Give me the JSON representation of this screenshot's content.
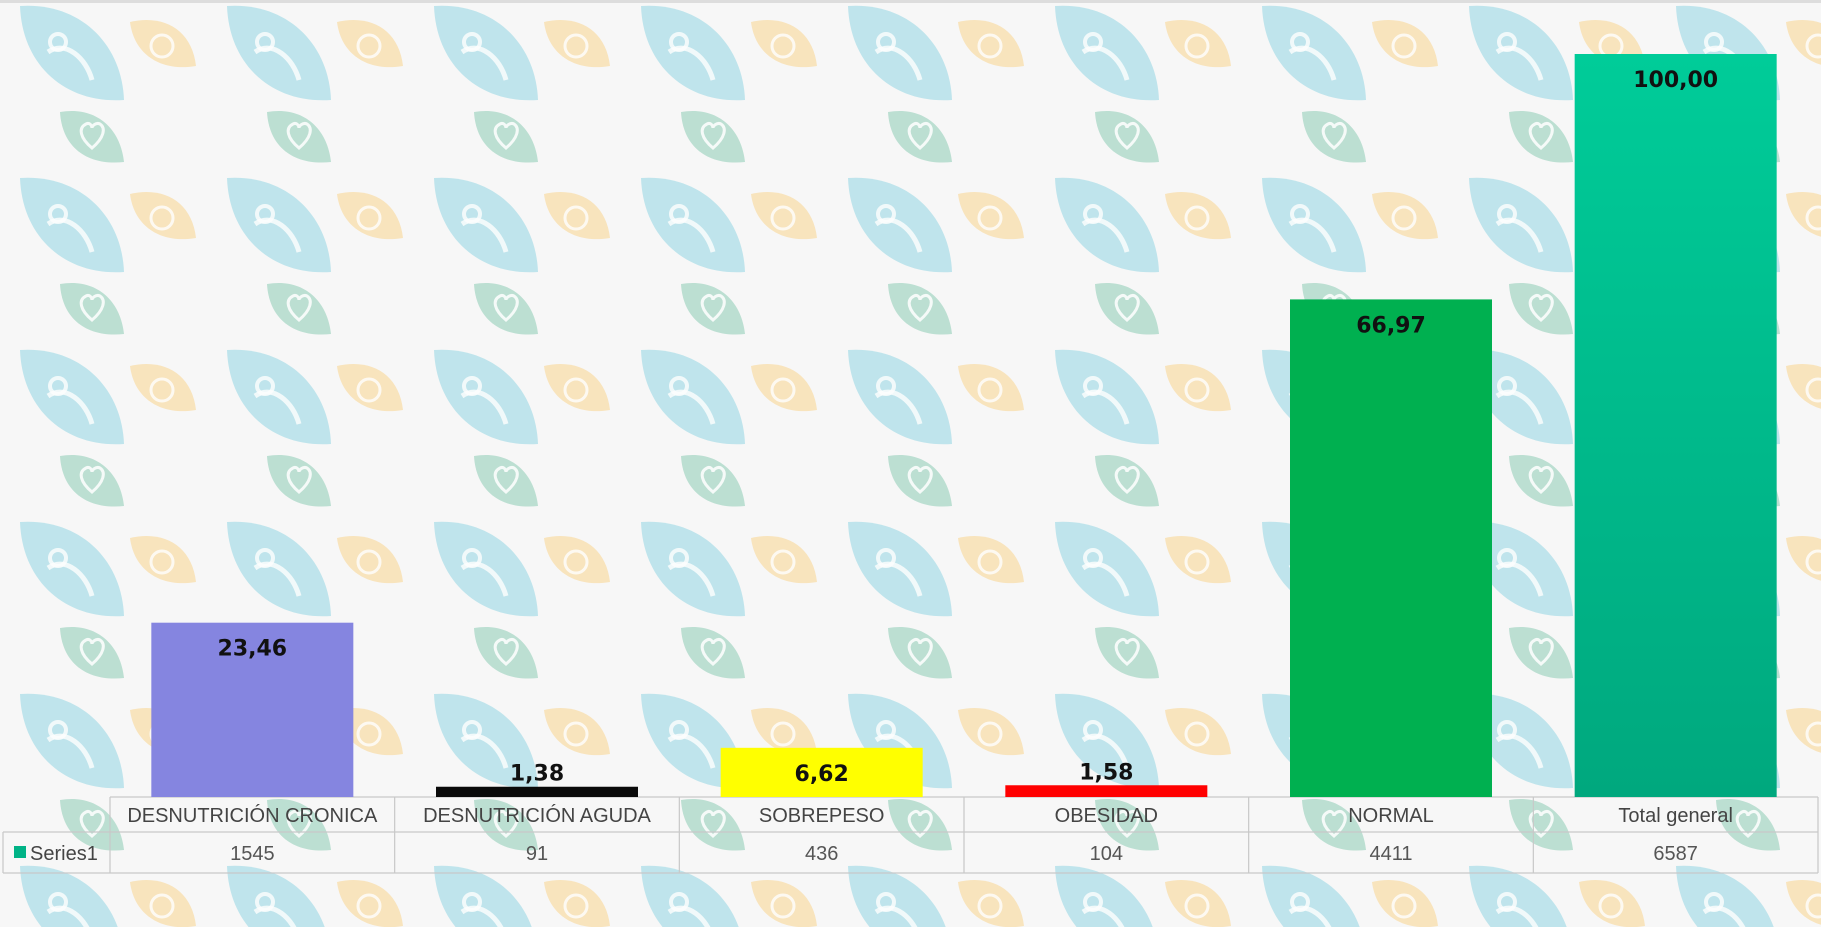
{
  "chart_data": {
    "type": "bar",
    "categories": [
      "DESNUTRICIÓN CRONICA",
      "DESNUTRICIÓN AGUDA",
      "SOBREPESO",
      "OBESIDAD",
      "NORMAL",
      "Total general"
    ],
    "values": [
      23.46,
      1.38,
      6.62,
      1.58,
      66.97,
      100.0
    ],
    "data_labels": [
      "23,46",
      "1,38",
      "6,62",
      "1,58",
      "66,97",
      "100,00"
    ],
    "ylim": [
      0,
      100
    ],
    "grid": false,
    "data_table": {
      "series_name": "Series1",
      "values": [
        "1545",
        "91",
        "436",
        "104",
        "4411",
        "6587"
      ],
      "legend_key_color": "#00b386"
    },
    "colors": [
      "#8585e0",
      "#0a0a0a",
      "#ffff00",
      "#ff0000",
      "#00b050",
      "#00c896"
    ]
  }
}
